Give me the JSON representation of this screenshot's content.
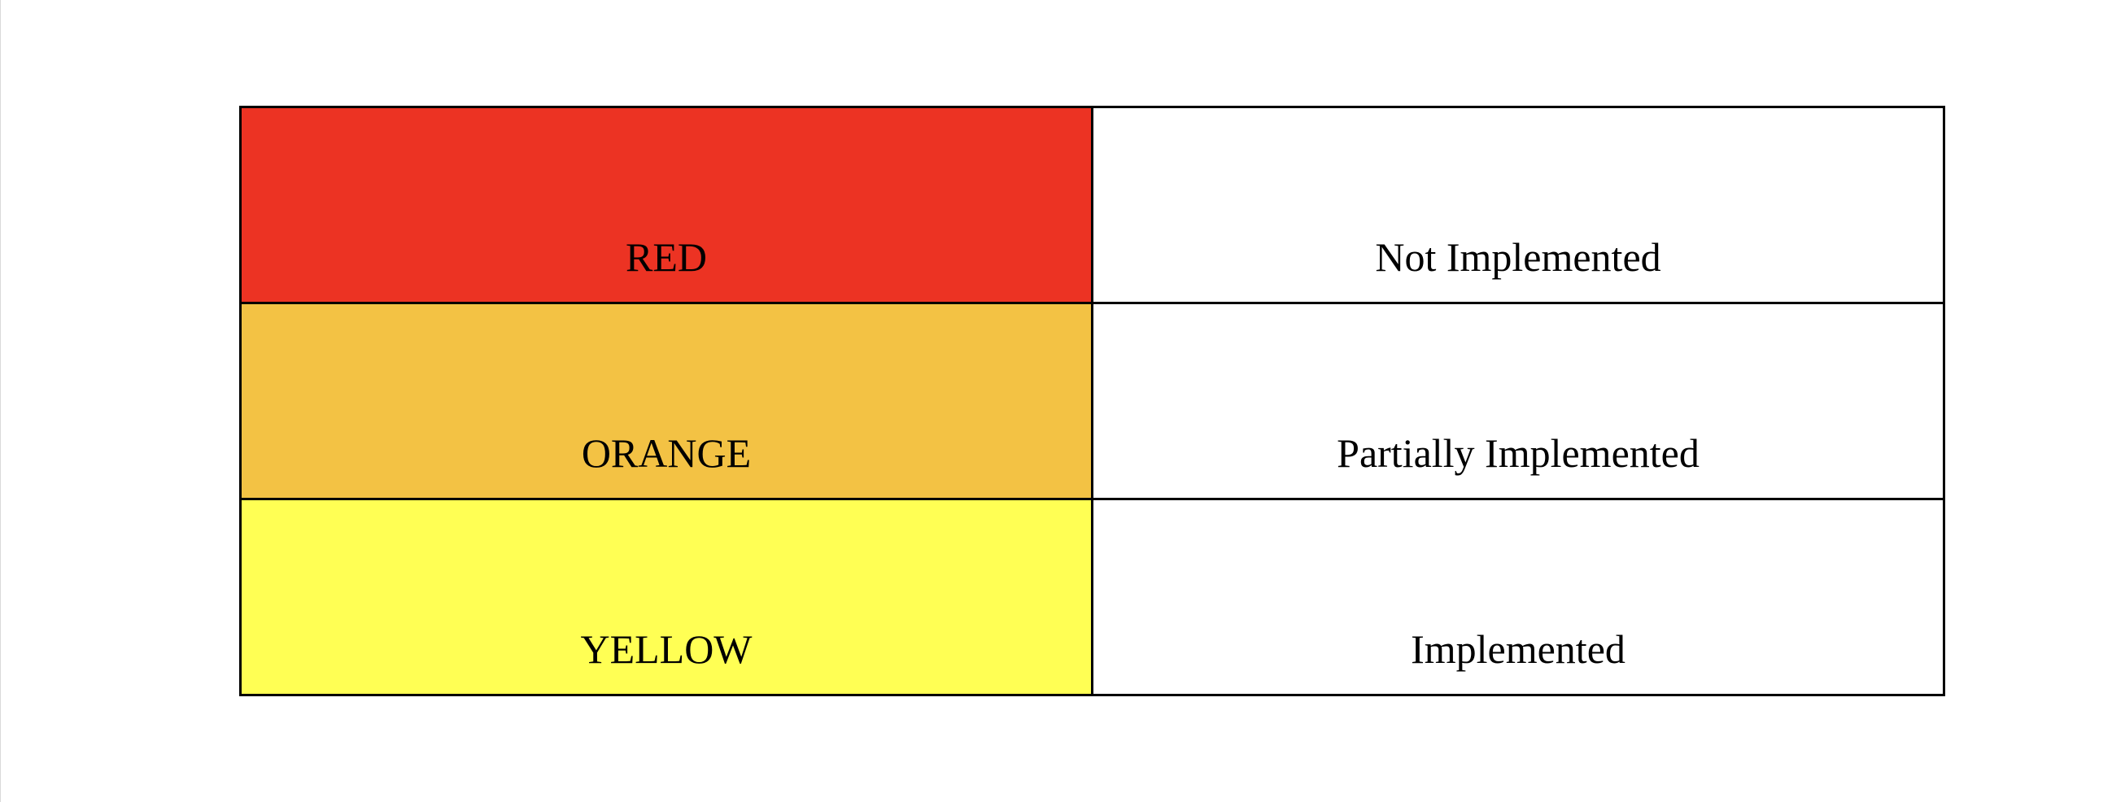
{
  "legend": {
    "rows": [
      {
        "color_label": "RED",
        "status": "Not Implemented",
        "color": "#EC3323"
      },
      {
        "color_label": "ORANGE",
        "status": "Partially Implemented",
        "color": "#F3C244"
      },
      {
        "color_label": "YELLOW",
        "status": "Implemented",
        "color": "#FFFF54"
      }
    ]
  }
}
